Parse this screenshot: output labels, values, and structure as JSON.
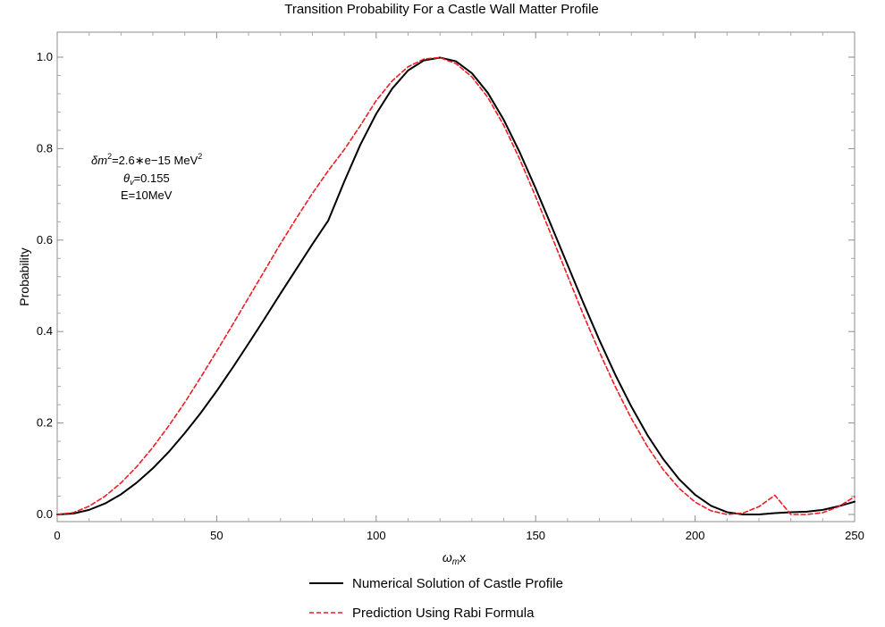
{
  "chart_data": {
    "type": "line",
    "title": "Transition Probability For a Castle Wall Matter Profile",
    "xlabel": "ω",
    "xlabel_sub": "m",
    "xlabel_tail": "x",
    "ylabel": "Probability",
    "xlim": [
      0,
      250
    ],
    "ylim": [
      0,
      1.0
    ],
    "x_ticks": [
      0,
      50,
      100,
      150,
      200,
      250
    ],
    "x_tick_labels": [
      "0",
      "50",
      "100",
      "150",
      "200",
      "250"
    ],
    "y_ticks": [
      0,
      0.2,
      0.4,
      0.6,
      0.8,
      1.0
    ],
    "y_tick_labels": [
      "0.0",
      "0.2",
      "0.4",
      "0.6",
      "0.8",
      "1.0"
    ],
    "grid": false,
    "legend_position": "bottom",
    "annotations": {
      "line1_prefix": "δm",
      "line1_sup1": "2",
      "line1_mid": "=2.6∗e−15 MeV",
      "line1_sup2": "2",
      "line2_symbol": "θ",
      "line2_sub": "v",
      "line2_value": "=0.155",
      "line3": "E=10MeV"
    },
    "series": [
      {
        "name": "Numerical Solution of Castle Profile",
        "color": "#000000",
        "style": "solid",
        "x": [
          0,
          5,
          10,
          15,
          20,
          25,
          30,
          35,
          40,
          45,
          50,
          55,
          60,
          65,
          70,
          75,
          80,
          85,
          90,
          95,
          100,
          105,
          110,
          115,
          120,
          125,
          130,
          135,
          140,
          145,
          150,
          155,
          160,
          165,
          170,
          175,
          180,
          185,
          190,
          195,
          200,
          205,
          210,
          215,
          220,
          225,
          230,
          235,
          240,
          245,
          250
        ],
        "y": [
          0.0,
          0.002,
          0.01,
          0.024,
          0.044,
          0.07,
          0.101,
          0.137,
          0.178,
          0.222,
          0.27,
          0.321,
          0.374,
          0.428,
          0.483,
          0.537,
          0.591,
          0.643,
          0.728,
          0.808,
          0.876,
          0.931,
          0.971,
          0.993,
          0.999,
          0.991,
          0.965,
          0.922,
          0.863,
          0.792,
          0.713,
          0.63,
          0.546,
          0.462,
          0.381,
          0.305,
          0.236,
          0.174,
          0.121,
          0.077,
          0.043,
          0.019,
          0.005,
          0.0,
          0.0,
          0.003,
          0.005,
          0.006,
          0.01,
          0.018,
          0.028
        ]
      },
      {
        "name": "Prediction Using Rabi Formula",
        "color": "#ee1c24",
        "style": "dashed",
        "x": [
          0,
          5,
          10,
          15,
          20,
          25,
          30,
          35,
          40,
          45,
          50,
          55,
          60,
          65,
          70,
          75,
          80,
          85,
          90,
          95,
          100,
          105,
          110,
          115,
          120,
          125,
          130,
          135,
          140,
          145,
          150,
          155,
          160,
          165,
          170,
          175,
          180,
          185,
          190,
          195,
          200,
          205,
          210,
          215,
          220,
          225,
          230,
          235,
          240,
          245,
          250
        ],
        "y": [
          0.0,
          0.004,
          0.018,
          0.04,
          0.069,
          0.105,
          0.147,
          0.194,
          0.245,
          0.3,
          0.357,
          0.415,
          0.474,
          0.533,
          0.592,
          0.648,
          0.702,
          0.752,
          0.798,
          0.85,
          0.905,
          0.948,
          0.979,
          0.996,
          0.999,
          0.986,
          0.957,
          0.912,
          0.851,
          0.777,
          0.695,
          0.609,
          0.522,
          0.436,
          0.355,
          0.279,
          0.21,
          0.149,
          0.098,
          0.057,
          0.027,
          0.008,
          0.0,
          0.003,
          0.017,
          0.042,
          0.0,
          0.0,
          0.004,
          0.017,
          0.039
        ]
      }
    ]
  }
}
